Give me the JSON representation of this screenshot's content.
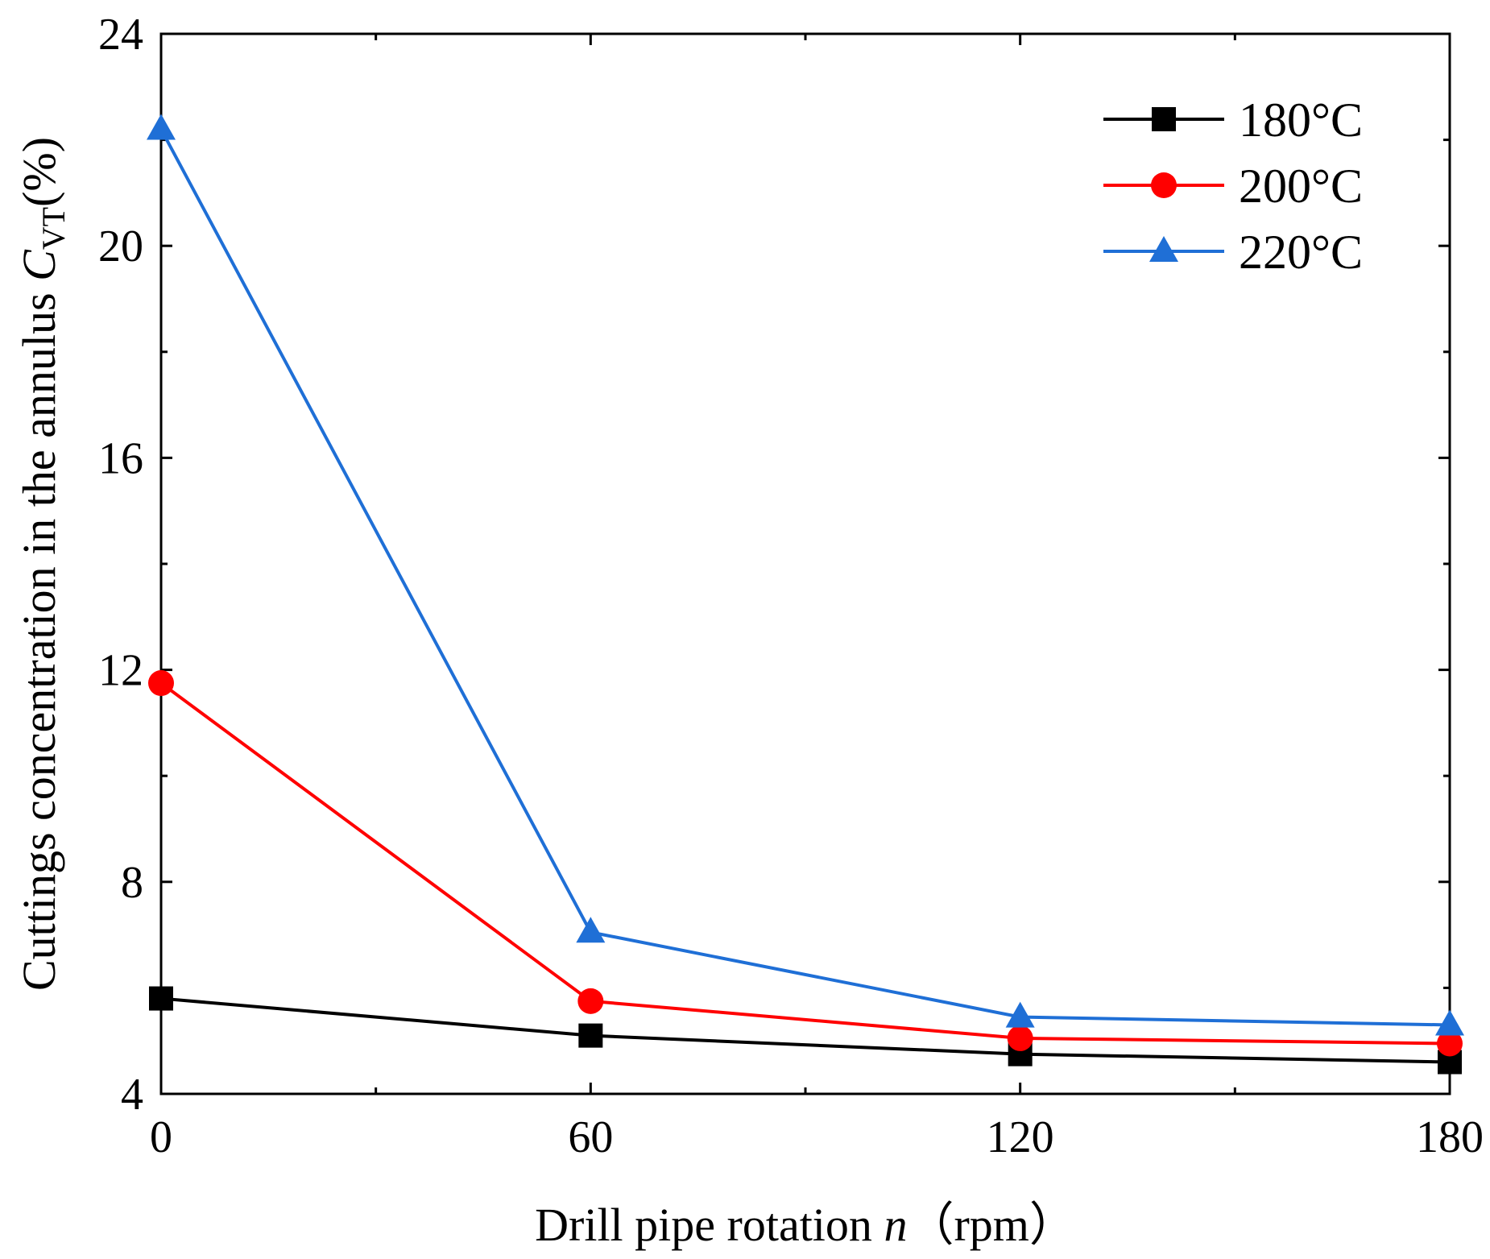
{
  "chart_data": {
    "type": "line",
    "title": "",
    "x": [
      0,
      60,
      120,
      180
    ],
    "xlim": [
      0,
      180
    ],
    "ylim": [
      4,
      24
    ],
    "xticks": [
      "0",
      "60",
      "120",
      "180"
    ],
    "yticks": [
      "4",
      "8",
      "12",
      "16",
      "20",
      "24"
    ],
    "xlabel": {
      "main": "Drill pipe rotation ",
      "var": "n",
      "units": "（rpm）"
    },
    "ylabel": {
      "main": "Cuttings concentration in the annulus ",
      "var": "C",
      "sub": "VT",
      "units": "(%)"
    },
    "legend_position": "top-right",
    "series": [
      {
        "name": "180°C",
        "color": "#000000",
        "marker": "square",
        "values": [
          5.8,
          5.1,
          4.75,
          4.6
        ]
      },
      {
        "name": "200°C",
        "color": "#ff0000",
        "marker": "circle",
        "values": [
          11.75,
          5.75,
          5.05,
          4.95
        ]
      },
      {
        "name": "220°C",
        "color": "#1f6fd6",
        "marker": "triangle",
        "values": [
          22.2,
          7.05,
          5.45,
          5.3
        ]
      }
    ]
  }
}
